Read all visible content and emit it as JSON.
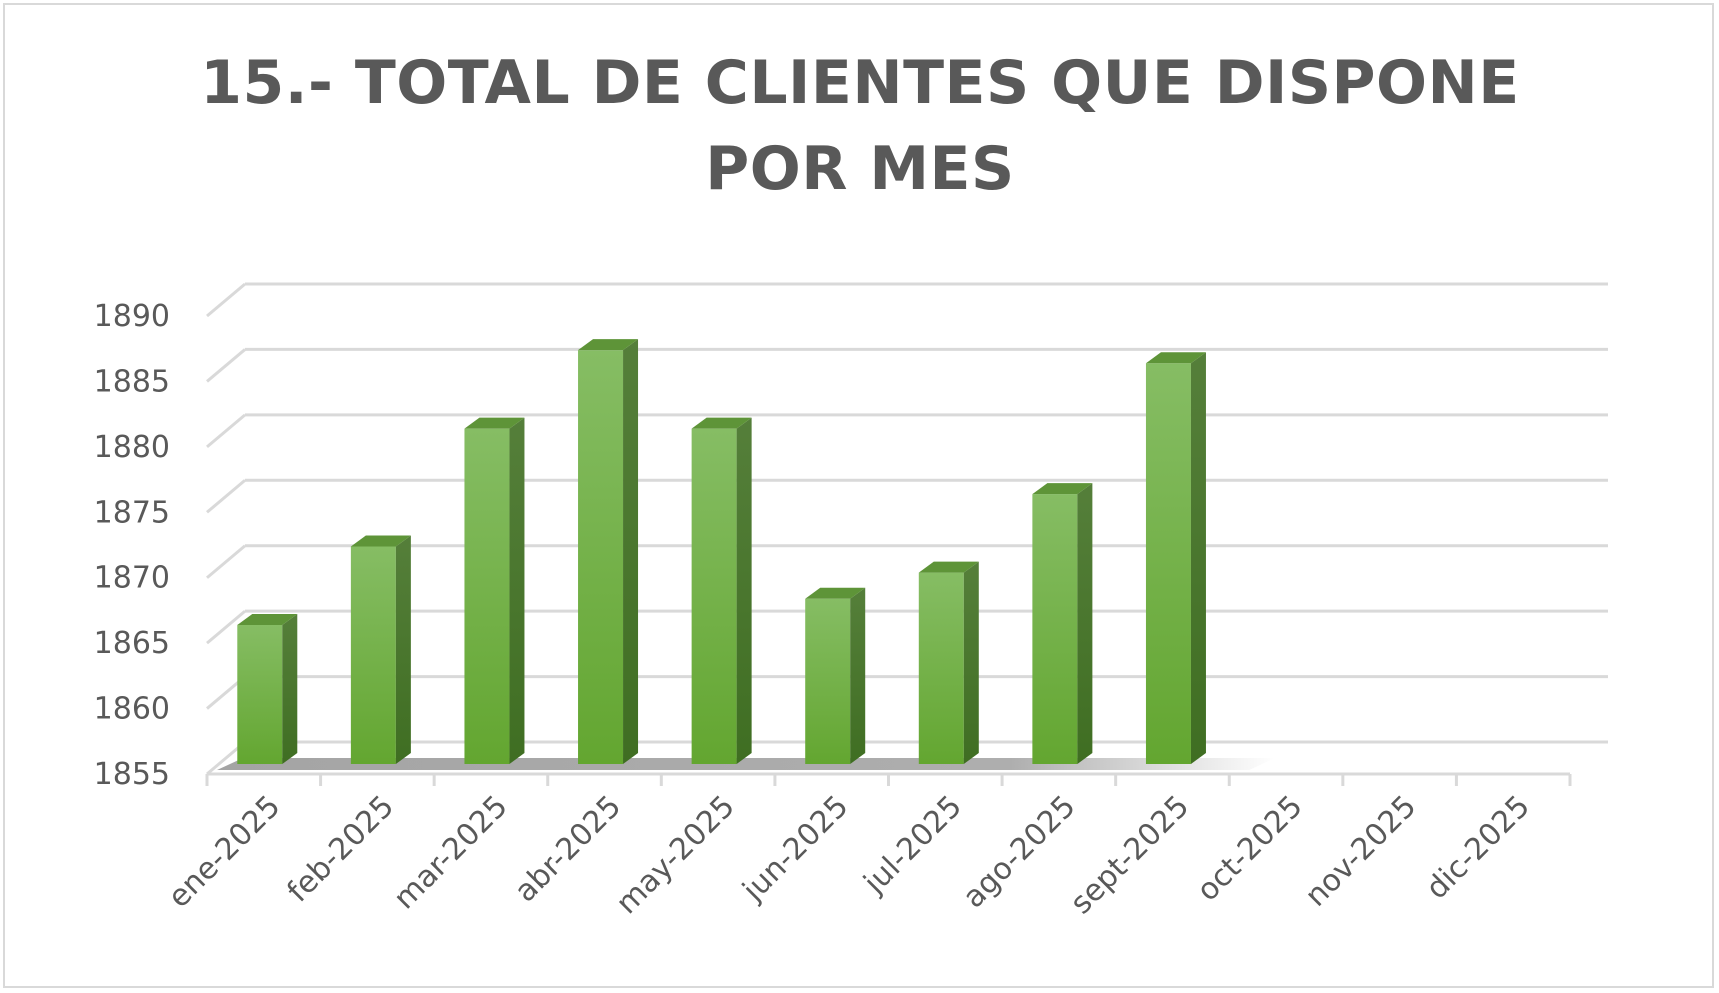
{
  "chart_data": {
    "type": "bar",
    "title": "15.- TOTAL DE CLIENTES QUE DISPONE POR MES",
    "categories": [
      "ene-2025",
      "feb-2025",
      "mar-2025",
      "abr-2025",
      "may-2025",
      "jun-2025",
      "jul-2025",
      "ago-2025",
      "sept-2025",
      "oct-2025",
      "nov-2025",
      "dic-2025"
    ],
    "values": [
      1867,
      1873,
      1882,
      1888,
      1882,
      1869,
      1871,
      1877,
      1887,
      null,
      null,
      null
    ],
    "xlabel": "",
    "ylabel": "",
    "ylim": [
      1855,
      1890
    ],
    "yticks": [
      1855,
      1860,
      1865,
      1870,
      1875,
      1880,
      1885,
      1890
    ],
    "grid": true,
    "legend": "none",
    "style": "3d-column",
    "colors": {
      "bar_front_top": "#86bd64",
      "bar_front_bottom": "#66a934",
      "bar_side": "#4a7b2a",
      "bar_top": "#5e9438",
      "grid": "#d9d9d9",
      "axis": "#d9d9d9",
      "text": "#595959"
    }
  }
}
